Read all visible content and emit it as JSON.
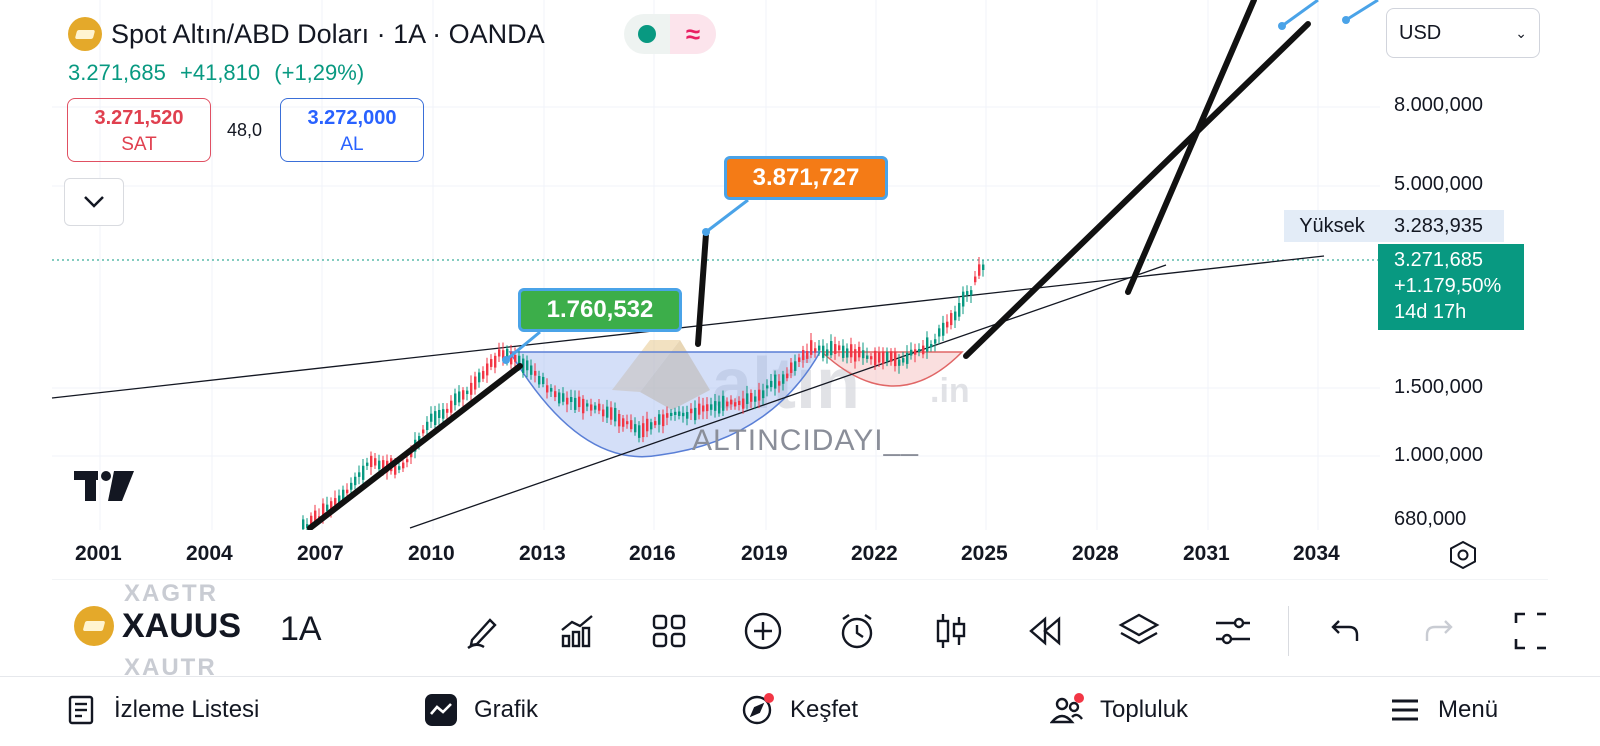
{
  "header": {
    "title": "Spot Altın/ABD Doları · 1A · OANDA",
    "price": "3.271,685",
    "change": "+41,810",
    "change_pct": "(+1,29%)"
  },
  "trade": {
    "sell_value": "3.271,520",
    "sell_label": "SAT",
    "spread": "48,0",
    "buy_value": "3.272,000",
    "buy_label": "AL"
  },
  "currency": {
    "selected": "USD"
  },
  "price_axis": {
    "labels": [
      "8.000,000",
      "5.000,000",
      "1.500,000",
      "1.000,000",
      "680,000"
    ],
    "high_label": "Yüksek",
    "high_value": "3.283,935",
    "last_price": "3.271,685",
    "last_change": "+1.179,50%",
    "countdown": "14d 17h"
  },
  "time_axis": {
    "labels": [
      "2001",
      "2004",
      "2007",
      "2010",
      "2013",
      "2016",
      "2019",
      "2022",
      "2025",
      "2028",
      "2031",
      "2034"
    ]
  },
  "annotations": {
    "callout_1": "1.760,532",
    "callout_2": "3.871,727",
    "watermark_brand": "altin.in",
    "watermark_user": "ALTINCIDAYI__"
  },
  "chart_data": {
    "type": "candlestick",
    "scale": "log",
    "x_range": [
      "2001",
      "2034"
    ],
    "price_ticks": [
      680,
      1000,
      1500,
      5000,
      8000
    ],
    "annotation_points": [
      {
        "label": "1.760,532",
        "value": 1760.532
      },
      {
        "label": "3.871,727",
        "value": 3871.727
      }
    ]
  },
  "toolbar": {
    "symbol": "XAUUS",
    "ghost_above": "XAGTR",
    "ghost_below": "XAUTR",
    "interval": "1A",
    "icons": [
      "pencil-icon",
      "indicators-icon",
      "layouts-icon",
      "add-icon",
      "alert-icon",
      "candles-icon",
      "replay-icon",
      "layers-icon",
      "settings-icon",
      "undo-icon",
      "redo-icon",
      "fullscreen-icon"
    ]
  },
  "bottom_nav": {
    "watchlist": "İzleme Listesi",
    "chart": "Grafik",
    "explore": "Keşfet",
    "community": "Topluluk",
    "menu": "Menü"
  }
}
